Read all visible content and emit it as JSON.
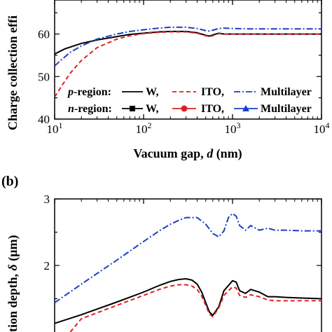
{
  "panel_b_label": "(b)",
  "chart_data": [
    {
      "type": "line",
      "ylabel": "Charge collection effi",
      "xlabel_main": "Vacuum gap, ",
      "xlabel_var": "d",
      "xlabel_unit": " (nm)",
      "x_scale": "log",
      "xlim": [
        10,
        10000
      ],
      "ylim": [
        40,
        68
      ],
      "x_ticks": [
        10,
        100,
        1000,
        10000
      ],
      "x_tick_labels": [
        {
          "base": "10",
          "exp": "1"
        },
        {
          "base": "10",
          "exp": "2"
        },
        {
          "base": "10",
          "exp": "3"
        },
        {
          "base": "10",
          "exp": "4"
        }
      ],
      "y_ticks": [
        40,
        50,
        60
      ],
      "y_tick_labels": [
        "40",
        "50",
        "60"
      ],
      "legend_placement": "bottom-right",
      "legend": {
        "rows": [
          {
            "region_var": "p",
            "region_text": "-region:",
            "entries": [
              "W,",
              "ITO,",
              "Multilayer"
            ]
          },
          {
            "region_var": "n",
            "region_text": "-region:",
            "entries": [
              "W,",
              "ITO,",
              "Multilayer"
            ]
          }
        ]
      },
      "series": [
        {
          "region": "p",
          "material": "W",
          "color": "#000000",
          "dash": "solid",
          "x": [
            10,
            13,
            20,
            30,
            50,
            70,
            100,
            150,
            200,
            300,
            400,
            500,
            550,
            600,
            700,
            800,
            1000,
            1500,
            2000,
            3000,
            5000,
            10000
          ],
          "y": [
            55.3,
            56.5,
            57.8,
            58.6,
            59.4,
            59.9,
            60.2,
            60.5,
            60.6,
            60.6,
            60.3,
            59.7,
            59.5,
            59.8,
            60.2,
            60.0,
            60.0,
            60.0,
            60.0,
            60.0,
            60.0,
            60.0
          ]
        },
        {
          "region": "p",
          "material": "ITO",
          "color": "#e02020",
          "dash": "dashed",
          "x": [
            10,
            12,
            15,
            20,
            30,
            50,
            70,
            100,
            150,
            200,
            300,
            400,
            500,
            550,
            600,
            700,
            800,
            1000,
            1500,
            2000,
            3000,
            5000,
            10000
          ],
          "y": [
            45.2,
            47.8,
            50.8,
            53.8,
            56.8,
            58.8,
            59.6,
            60.1,
            60.4,
            60.5,
            60.5,
            60.2,
            59.6,
            59.4,
            59.6,
            60.1,
            60.0,
            60.0,
            60.0,
            60.0,
            60.0,
            60.0,
            60.0
          ]
        },
        {
          "region": "p",
          "material": "Multilayer",
          "color": "#1a3fc4",
          "dash": "dashdot",
          "x": [
            10,
            12,
            15,
            20,
            30,
            50,
            70,
            100,
            150,
            200,
            300,
            400,
            500,
            550,
            600,
            700,
            800,
            1000,
            1500,
            2000,
            3000,
            5000,
            10000
          ],
          "y": [
            52.5,
            54.0,
            55.7,
            57.2,
            58.8,
            60.0,
            60.6,
            61.0,
            61.4,
            61.6,
            61.6,
            61.3,
            60.8,
            60.7,
            60.9,
            61.3,
            61.4,
            61.3,
            61.2,
            61.2,
            61.2,
            61.2,
            61.2
          ]
        }
      ]
    },
    {
      "type": "line",
      "ylabel": "tion depth, ",
      "ylabel_var": "δ",
      "ylabel_unit": " (μm)",
      "x_scale": "log",
      "xlim": [
        10,
        10000
      ],
      "ylim": [
        1,
        3
      ],
      "y_ticks": [
        2,
        3
      ],
      "y_tick_labels": [
        "2",
        "3"
      ],
      "series": [
        {
          "region": "p",
          "material": "W",
          "color": "#000000",
          "dash": "solid",
          "x": [
            10,
            20,
            50,
            100,
            150,
            200,
            250,
            300,
            350,
            400,
            450,
            500,
            550,
            600,
            700,
            800,
            1000,
            1100,
            1200,
            1400,
            1600,
            2000,
            2500,
            3000,
            4000,
            6000,
            10000
          ],
          "y": [
            1.13,
            1.26,
            1.45,
            1.6,
            1.7,
            1.76,
            1.79,
            1.8,
            1.78,
            1.72,
            1.6,
            1.44,
            1.3,
            1.25,
            1.38,
            1.62,
            1.77,
            1.75,
            1.62,
            1.58,
            1.64,
            1.6,
            1.53,
            1.53,
            1.52,
            1.51,
            1.5
          ]
        },
        {
          "region": "p",
          "material": "ITO",
          "color": "#e02020",
          "dash": "dashed",
          "x": [
            15,
            20,
            50,
            100,
            150,
            200,
            250,
            300,
            350,
            400,
            450,
            500,
            550,
            600,
            700,
            800,
            1000,
            1100,
            1200,
            1400,
            1600,
            2000,
            2500,
            3000,
            4000,
            6000,
            10000
          ],
          "y": [
            1.0,
            1.2,
            1.4,
            1.55,
            1.64,
            1.69,
            1.71,
            1.71,
            1.69,
            1.64,
            1.54,
            1.4,
            1.27,
            1.23,
            1.36,
            1.55,
            1.68,
            1.66,
            1.55,
            1.52,
            1.56,
            1.53,
            1.48,
            1.47,
            1.47,
            1.47,
            1.47
          ]
        },
        {
          "region": "p",
          "material": "Multilayer",
          "color": "#1a3fc4",
          "dash": "dashdot",
          "x": [
            10,
            20,
            50,
            100,
            150,
            200,
            250,
            300,
            400,
            500,
            600,
            700,
            800,
            900,
            1000,
            1100,
            1200,
            1400,
            1600,
            2000,
            2500,
            3000,
            4000,
            6000,
            10000
          ],
          "y": [
            1.44,
            1.72,
            2.08,
            2.36,
            2.52,
            2.62,
            2.68,
            2.72,
            2.72,
            2.62,
            2.48,
            2.43,
            2.52,
            2.72,
            2.78,
            2.74,
            2.6,
            2.53,
            2.6,
            2.53,
            2.56,
            2.53,
            2.53,
            2.52,
            2.52
          ]
        }
      ]
    }
  ]
}
